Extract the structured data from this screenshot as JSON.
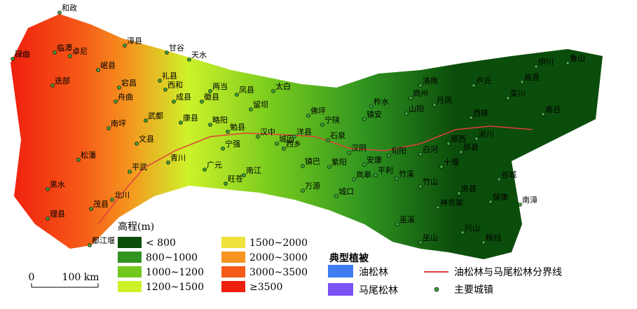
{
  "map": {
    "towns": [
      "和政",
      "碌曲",
      "临潭",
      "卓尼",
      "岷县",
      "迭部",
      "漳县",
      "甘谷",
      "天水",
      "礼县",
      "宕昌",
      "西和",
      "舟曲",
      "两当",
      "凤县",
      "太白",
      "成县",
      "徽县",
      "留坝",
      "武都",
      "康县",
      "略阳",
      "勉县",
      "汉中",
      "城固",
      "洋县",
      "佛坪",
      "宁陕",
      "柞水",
      "镇安",
      "山阳",
      "商州",
      "洛南",
      "卢氏",
      "丹凤",
      "栾川",
      "伊川",
      "嵩县",
      "鲁山",
      "南召",
      "西峡",
      "淅川",
      "南坪",
      "文县",
      "平武",
      "青川",
      "松潘",
      "黑水",
      "理县",
      "茂县",
      "北川",
      "都江堰",
      "宁强",
      "广元",
      "南江",
      "旺苍",
      "镇巴",
      "西乡",
      "石泉",
      "汉阴",
      "安康",
      "紫阳",
      "岚皋",
      "平利",
      "旬阳",
      "白河",
      "郧西",
      "郧县",
      "十堰",
      "竹溪",
      "竹山",
      "房县",
      "保康",
      "谷城",
      "南漳",
      "神农架",
      "城口",
      "万源",
      "巫溪",
      "巫山",
      "兴山",
      "秭归"
    ],
    "elevation_legend": {
      "title": "高程(m)",
      "items": [
        {
          "label": "< 800",
          "color": "#0b4d0b"
        },
        {
          "label": "800~1000",
          "color": "#2f9420"
        },
        {
          "label": "1000~1200",
          "color": "#73c81e"
        },
        {
          "label": "1200~1500",
          "color": "#cdf22a"
        },
        {
          "label": "1500~2000",
          "color": "#f0e23a"
        },
        {
          "label": "2000~3000",
          "color": "#f5951f"
        },
        {
          "label": "3000~3500",
          "color": "#f55a18"
        },
        {
          "label": "≥3500",
          "color": "#f0200e"
        }
      ]
    },
    "vegetation_legend": {
      "title": "典型植被",
      "items": [
        {
          "label": "油松林",
          "color": "#3d7cf2"
        },
        {
          "label": "马尾松林",
          "color": "#7a52f5"
        }
      ]
    },
    "boundary_legend": {
      "label": "油松林与马尾松林分界线",
      "color": "#e0403c"
    },
    "town_legend": {
      "label": "主要城镇",
      "color": "#3ca03c"
    },
    "scale_bar": {
      "start": "0",
      "end": "100 km"
    }
  }
}
